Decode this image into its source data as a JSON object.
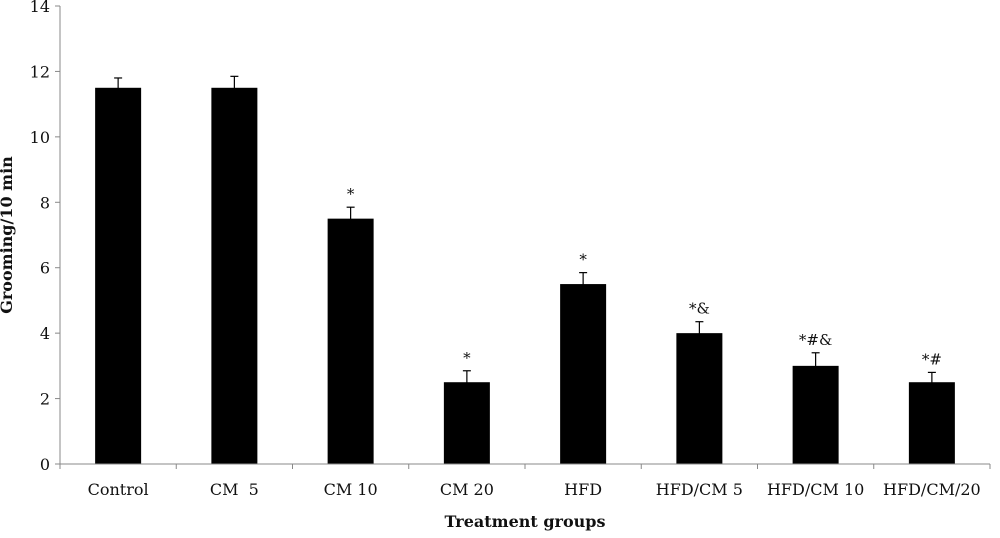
{
  "chart_data": {
    "type": "bar",
    "categories": [
      "Control",
      "CM  5",
      "CM 10",
      "CM 20",
      "HFD",
      "HFD/CM 5",
      "HFD/CM 10",
      "HFD/CM/20"
    ],
    "values": [
      11.5,
      11.5,
      7.5,
      2.5,
      5.5,
      4.0,
      3.0,
      2.5
    ],
    "errors": [
      0.3,
      0.35,
      0.35,
      0.35,
      0.35,
      0.35,
      0.4,
      0.3
    ],
    "significance": [
      "",
      "",
      "*",
      "*",
      "*",
      "*&",
      "*#&",
      "*#"
    ],
    "title": "",
    "xlabel": "Treatment groups",
    "ylabel": "Grooming/10 min",
    "ylim": [
      0,
      14
    ],
    "yticks": [
      0,
      2,
      4,
      6,
      8,
      10,
      12,
      14
    ],
    "grid": false,
    "bar_color": "#000000",
    "axis_color": "#888888"
  }
}
